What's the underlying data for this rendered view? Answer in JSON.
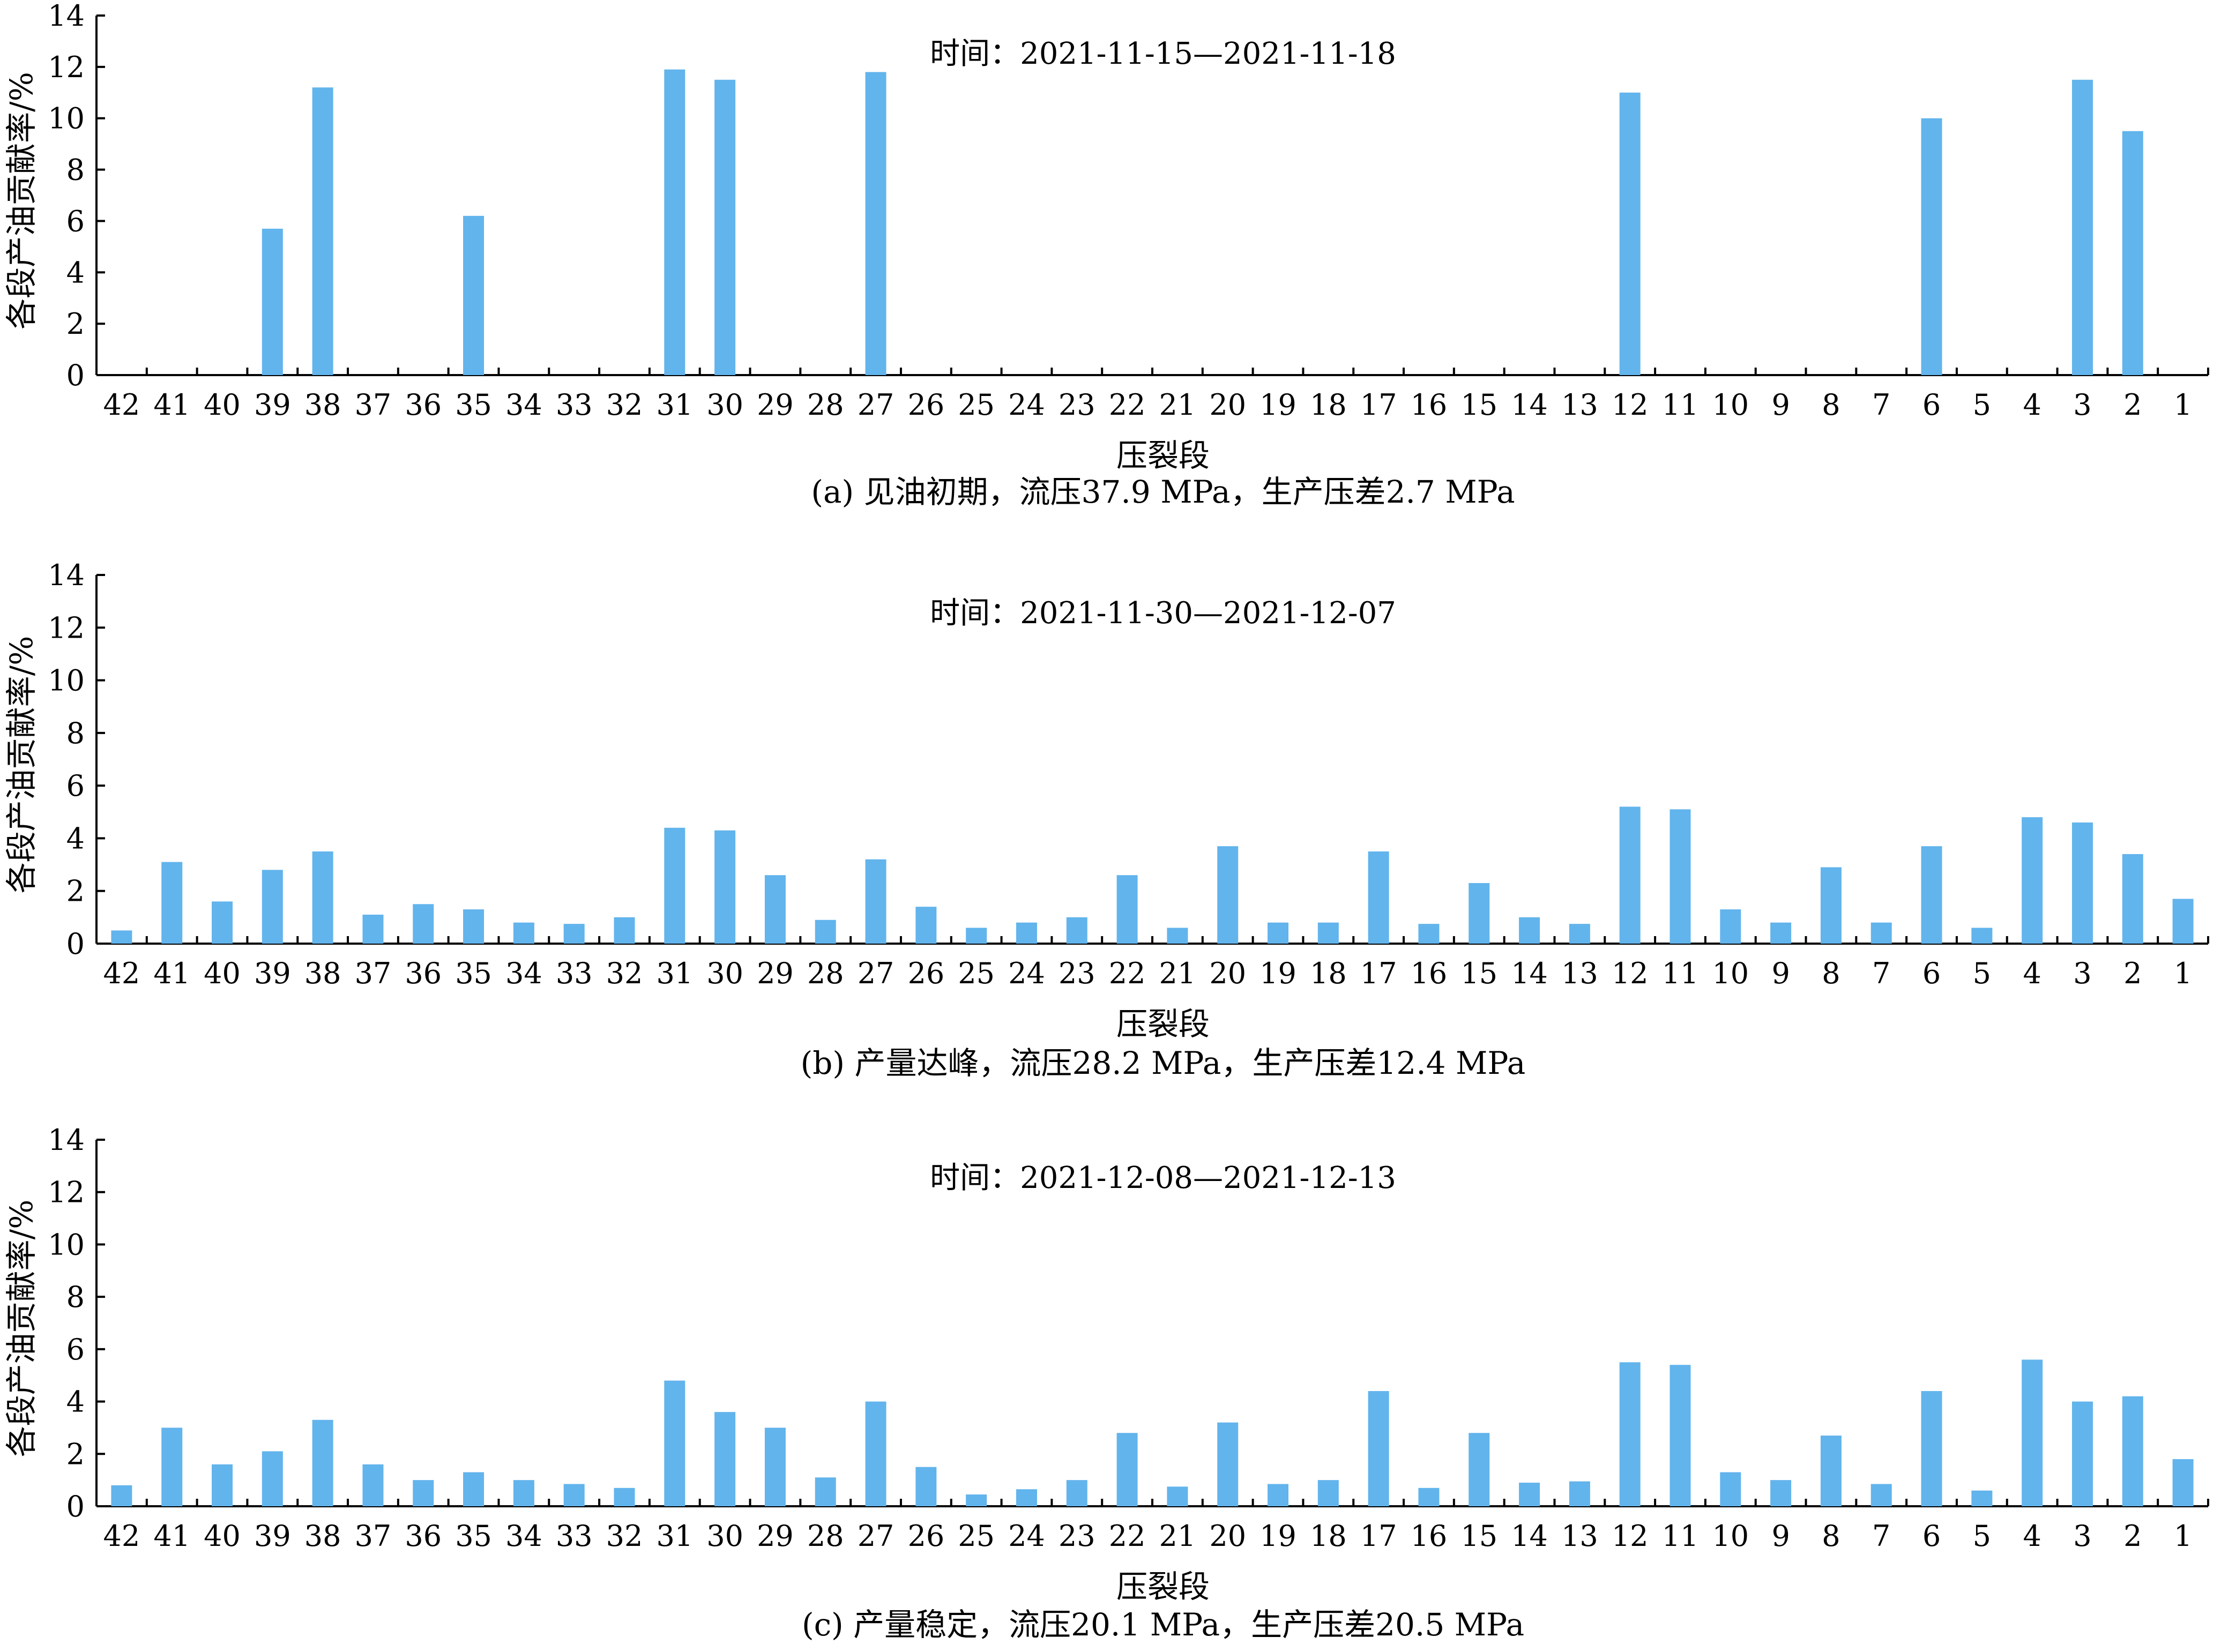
{
  "figure": {
    "bar_color": "#62B4EC",
    "axis_color": "#000000"
  },
  "chart_data": [
    {
      "type": "bar",
      "annotation": "时间：2021-11-15—2021-11-18",
      "caption": "(a) 见油初期，流压37.9 MPa，生产压差2.7 MPa",
      "xlabel": "压裂段",
      "ylabel": "各段产油贡献率/%",
      "ylim": [
        0,
        14
      ],
      "yticks": [
        0,
        2,
        4,
        6,
        8,
        10,
        12,
        14
      ],
      "categories": [
        "42",
        "41",
        "40",
        "39",
        "38",
        "37",
        "36",
        "35",
        "34",
        "33",
        "32",
        "31",
        "30",
        "29",
        "28",
        "27",
        "26",
        "25",
        "24",
        "23",
        "22",
        "21",
        "20",
        "19",
        "18",
        "17",
        "16",
        "15",
        "14",
        "13",
        "12",
        "11",
        "10",
        "9",
        "8",
        "7",
        "6",
        "5",
        "4",
        "3",
        "2",
        "1"
      ],
      "values": [
        0,
        0,
        0,
        5.7,
        11.2,
        0,
        0,
        6.2,
        0,
        0,
        0,
        11.9,
        11.5,
        0,
        0,
        11.8,
        0,
        0,
        0,
        0,
        0,
        0,
        0,
        0,
        0,
        0,
        0,
        0,
        0,
        0,
        11.0,
        0,
        0,
        0,
        0,
        0,
        10.0,
        0,
        0,
        11.5,
        9.5,
        0
      ]
    },
    {
      "type": "bar",
      "annotation": "时间：2021-11-30—2021-12-07",
      "caption": "(b) 产量达峰，流压28.2 MPa，生产压差12.4 MPa",
      "xlabel": "压裂段",
      "ylabel": "各段产油贡献率/%",
      "ylim": [
        0,
        14
      ],
      "yticks": [
        0,
        2,
        4,
        6,
        8,
        10,
        12,
        14
      ],
      "categories": [
        "42",
        "41",
        "40",
        "39",
        "38",
        "37",
        "36",
        "35",
        "34",
        "33",
        "32",
        "31",
        "30",
        "29",
        "28",
        "27",
        "26",
        "25",
        "24",
        "23",
        "22",
        "21",
        "20",
        "19",
        "18",
        "17",
        "16",
        "15",
        "14",
        "13",
        "12",
        "11",
        "10",
        "9",
        "8",
        "7",
        "6",
        "5",
        "4",
        "3",
        "2",
        "1"
      ],
      "values": [
        0.5,
        3.1,
        1.6,
        2.8,
        3.5,
        1.1,
        1.5,
        1.3,
        0.8,
        0.75,
        1.0,
        4.4,
        4.3,
        2.6,
        0.9,
        3.2,
        1.4,
        0.6,
        0.8,
        1.0,
        2.6,
        0.6,
        3.7,
        0.8,
        0.8,
        3.5,
        0.75,
        2.3,
        1.0,
        0.75,
        5.2,
        5.1,
        1.3,
        0.8,
        2.9,
        0.8,
        3.7,
        0.6,
        4.8,
        4.6,
        3.4,
        1.7
      ]
    },
    {
      "type": "bar",
      "annotation": "时间：2021-12-08—2021-12-13",
      "caption": "(c) 产量稳定，流压20.1 MPa，生产压差20.5 MPa",
      "xlabel": "压裂段",
      "ylabel": "各段产油贡献率/%",
      "ylim": [
        0,
        14
      ],
      "yticks": [
        0,
        2,
        4,
        6,
        8,
        10,
        12,
        14
      ],
      "categories": [
        "42",
        "41",
        "40",
        "39",
        "38",
        "37",
        "36",
        "35",
        "34",
        "33",
        "32",
        "31",
        "30",
        "29",
        "28",
        "27",
        "26",
        "25",
        "24",
        "23",
        "22",
        "21",
        "20",
        "19",
        "18",
        "17",
        "16",
        "15",
        "14",
        "13",
        "12",
        "11",
        "10",
        "9",
        "8",
        "7",
        "6",
        "5",
        "4",
        "3",
        "2",
        "1"
      ],
      "values": [
        0.8,
        3.0,
        1.6,
        2.1,
        3.3,
        1.6,
        1.0,
        1.3,
        1.0,
        0.85,
        0.7,
        4.8,
        3.6,
        3.0,
        1.1,
        4.0,
        1.5,
        0.45,
        0.65,
        1.0,
        2.8,
        0.75,
        3.2,
        0.85,
        1.0,
        4.4,
        0.7,
        2.8,
        0.9,
        0.95,
        5.5,
        5.4,
        1.3,
        1.0,
        2.7,
        0.85,
        4.4,
        0.6,
        5.6,
        4.0,
        4.2,
        1.8
      ]
    }
  ]
}
